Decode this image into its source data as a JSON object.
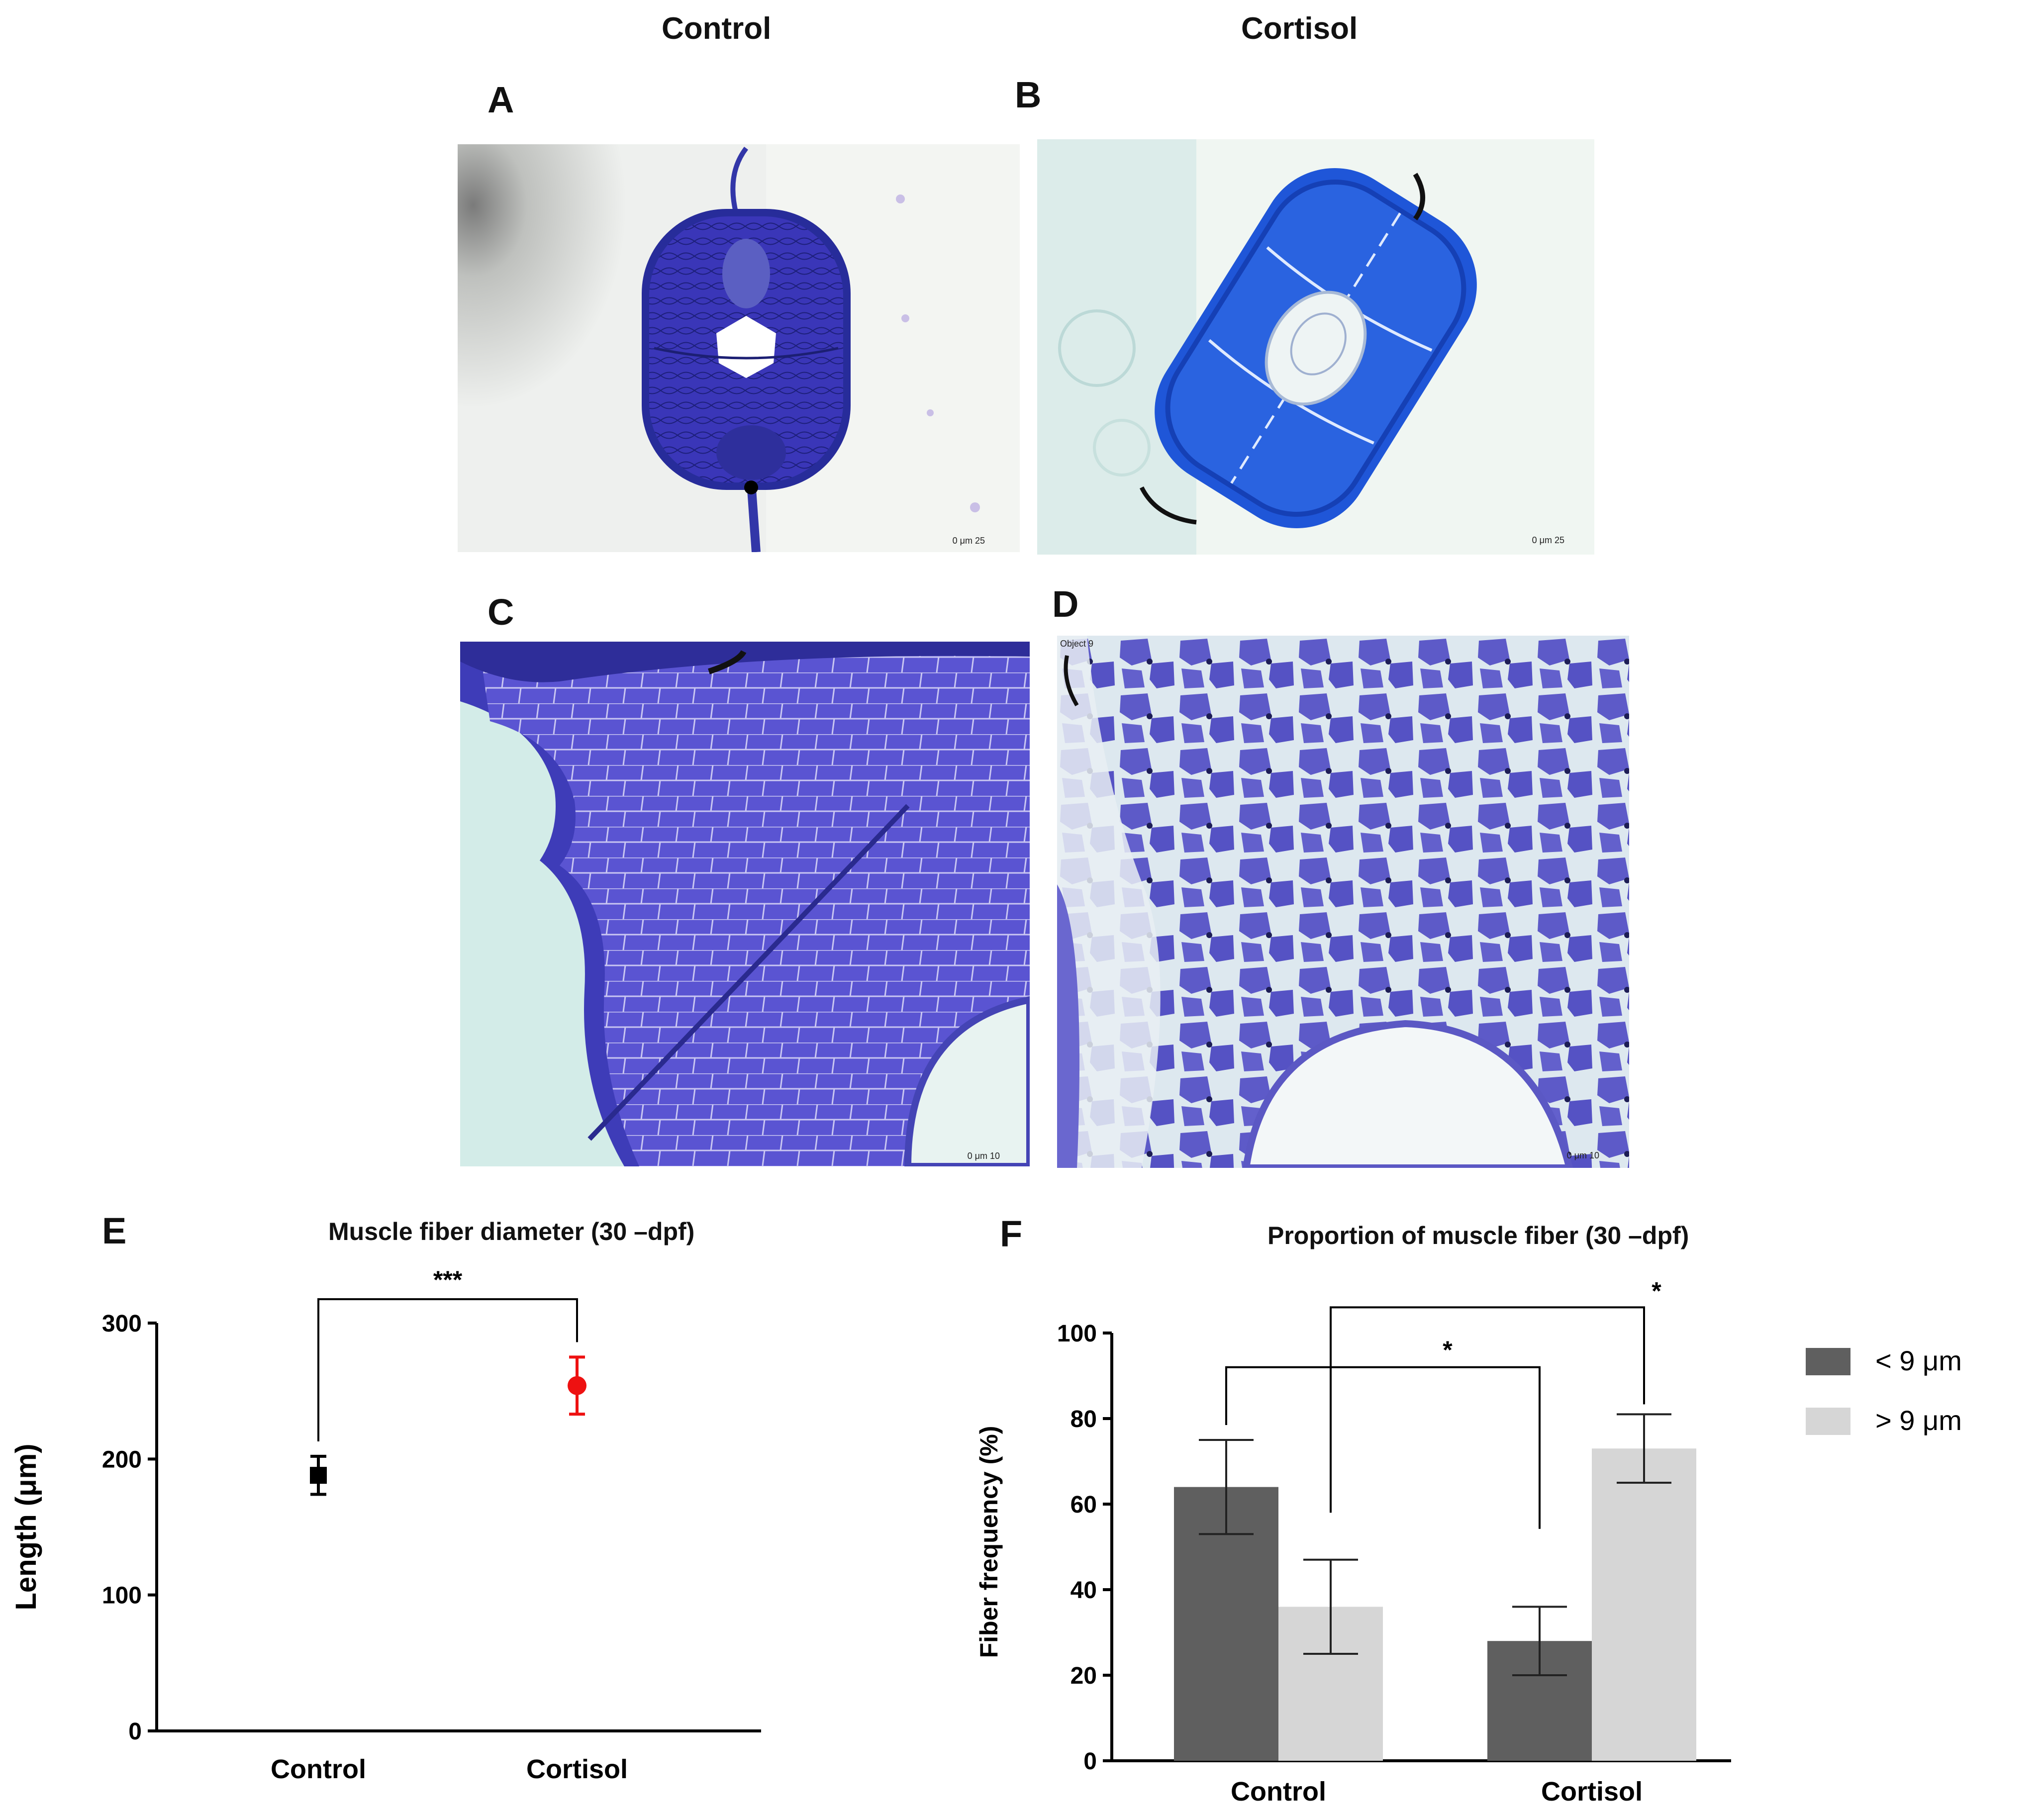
{
  "columns": {
    "left": "Control",
    "right": "Cortisol"
  },
  "panels": {
    "a": {
      "letter": "A",
      "scale": "0 μm 25"
    },
    "b": {
      "letter": "B",
      "scale": "0 μm 25"
    },
    "c": {
      "letter": "C",
      "scale": "0 μm 10"
    },
    "d": {
      "letter": "D",
      "scale": "0 μm 10",
      "corner_text": "Object 9"
    },
    "e": {
      "letter": "E"
    },
    "f": {
      "letter": "F"
    }
  },
  "colors": {
    "stain_dark": "#2a2fb0",
    "stain_mid": "#4a48cc",
    "stain_light": "#6a62d6",
    "background_control": "#f3f5f2",
    "background_cortisol": "#d8ecec",
    "control_marker": "#000000",
    "cortisol_marker": "#ee1111",
    "bar_lt9": "#5f5f5f",
    "bar_gt9": "#d6d6d6"
  },
  "chart_data": [
    {
      "panel": "E",
      "type": "scatter",
      "title": "Muscle fiber diameter (30 –dpf)",
      "xlabel": "",
      "ylabel": "Length (μm)",
      "categories": [
        "Control",
        "Cortisol"
      ],
      "values": [
        188,
        254
      ],
      "errors": [
        14,
        21
      ],
      "marker_colors": [
        "#000000",
        "#ee1111"
      ],
      "marker_shapes": [
        "square",
        "circle"
      ],
      "ylim": [
        0,
        300
      ],
      "yticks": [
        0,
        100,
        200,
        300
      ],
      "significance": [
        {
          "from": "Control",
          "to": "Cortisol",
          "label": "***"
        }
      ]
    },
    {
      "panel": "F",
      "type": "bar",
      "title": "Proportion of muscle fiber (30 –dpf)",
      "xlabel": "",
      "ylabel": "Fiber frequency (%)",
      "categories": [
        "Control",
        "Cortisol"
      ],
      "series": [
        {
          "name": "< 9 μm",
          "values": [
            64,
            28
          ],
          "errors": [
            11,
            8
          ],
          "color": "#5f5f5f"
        },
        {
          "name": "> 9 μm",
          "values": [
            36,
            73
          ],
          "errors": [
            11,
            8
          ],
          "color": "#d6d6d6"
        }
      ],
      "ylim": [
        0,
        100
      ],
      "yticks": [
        0,
        20,
        40,
        60,
        80,
        100
      ],
      "legend": "right",
      "significance": [
        {
          "from": "Control < 9 μm",
          "to": "Cortisol < 9 μm",
          "label": "*"
        },
        {
          "from": "Control > 9 μm",
          "to": "Cortisol > 9 μm",
          "label": "*"
        }
      ]
    }
  ]
}
